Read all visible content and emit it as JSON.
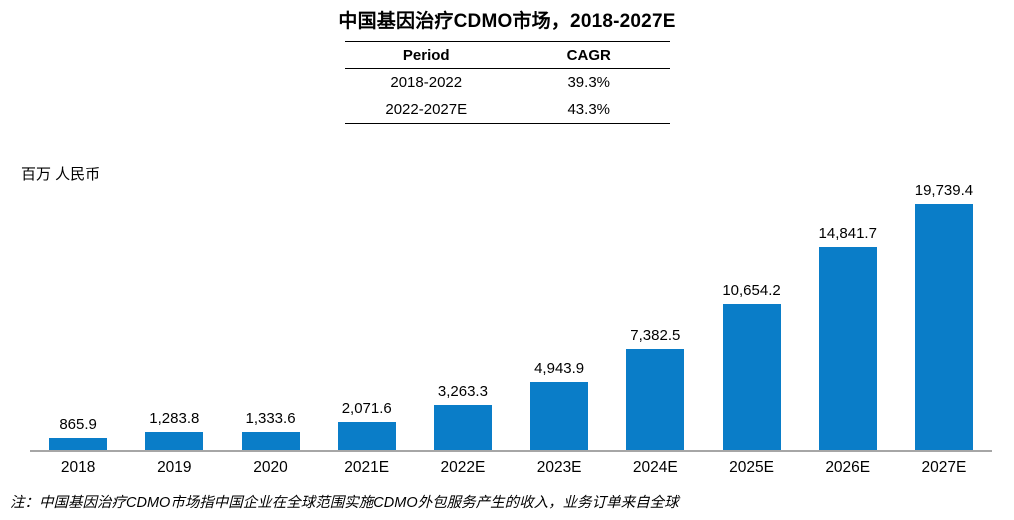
{
  "title": "中国基因治疗CDMO市场，2018-2027E",
  "cagr_table": {
    "headers": [
      "Period",
      "CAGR"
    ],
    "rows": [
      [
        "2018-2022",
        "39.3%"
      ],
      [
        "2022-2027E",
        "43.3%"
      ]
    ]
  },
  "unit_label": "百万 人民币",
  "footnote": "注：中国基因治疗CDMO市场指中国企业在全球范围实施CDMO外包服务产生的收入，业务订单来自全球",
  "colors": {
    "bar": "#0a7dc8",
    "axis": "#a6a6a6",
    "text": "#000000"
  },
  "chart_data": {
    "type": "bar",
    "title": "中国基因治疗CDMO市场，2018-2027E",
    "ylabel": "百万 人民币",
    "xlabel": "",
    "categories": [
      "2018",
      "2019",
      "2020",
      "2021E",
      "2022E",
      "2023E",
      "2024E",
      "2025E",
      "2026E",
      "2027E"
    ],
    "values": [
      865.9,
      1283.8,
      1333.6,
      2071.6,
      3263.3,
      4943.9,
      7382.5,
      10654.2,
      14841.7,
      19739.4
    ],
    "data_labels": [
      "865.9",
      "1,283.8",
      "1,333.6",
      "2,071.6",
      "3,263.3",
      "4,943.9",
      "7,382.5",
      "10,654.2",
      "14,841.7",
      "19,739.4"
    ],
    "ylim": [
      0,
      20000
    ],
    "grid": false,
    "legend_position": "none",
    "bar_color": "#0a7dc8"
  }
}
